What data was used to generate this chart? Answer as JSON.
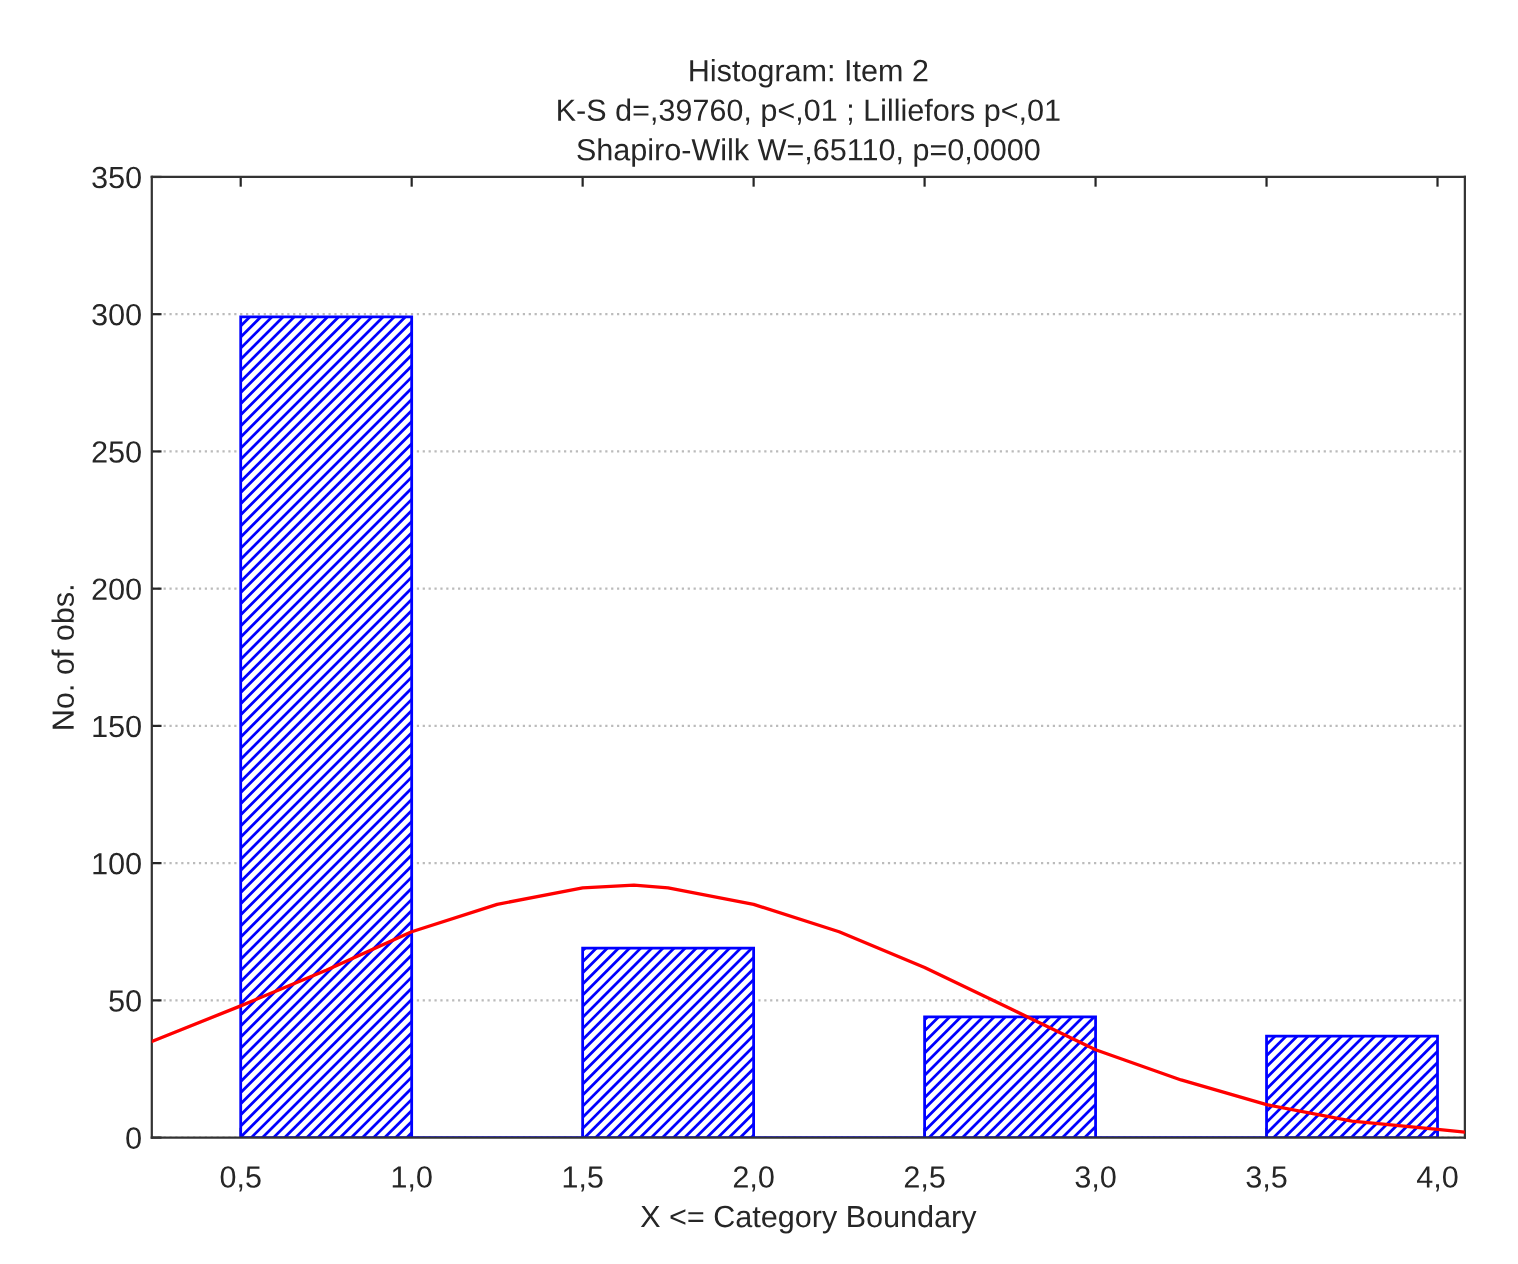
{
  "chart_data": {
    "type": "histogram",
    "title": "Histogram: Item 2\nK-S d=,39760, p<,01 ; Lilliefors p<,01\nShapiro-Wilk W=,65110, p=0,0000",
    "xlabel": "X <= Category Boundary",
    "ylabel": "No. of obs.",
    "bins": [
      0.5,
      1.0,
      1.5,
      2.0,
      2.5,
      3.0,
      3.5,
      4.0
    ],
    "values": [
      299,
      0,
      69,
      0,
      44,
      0,
      37
    ],
    "color": "#0000ff",
    "series": [
      {
        "type": "line",
        "color": "#ff0000",
        "x": [
          0.24,
          0.5,
          0.75,
          1.0,
          1.25,
          1.5,
          1.65,
          1.75,
          2.0,
          2.25,
          2.5,
          2.75,
          3.0,
          3.25,
          3.5,
          3.75,
          4.0,
          4.08
        ],
        "values": [
          35,
          48,
          61,
          75,
          85,
          91,
          92,
          91,
          85,
          75,
          62,
          47,
          32,
          21,
          12,
          6,
          3,
          2
        ]
      }
    ],
    "xlim": [
      0.24,
      4.08
    ],
    "ylim": [
      0,
      350
    ],
    "xticks": [
      {
        "value": 0.5,
        "label": "0,5"
      },
      {
        "value": 1.0,
        "label": "1,0"
      },
      {
        "value": 1.5,
        "label": "1,5"
      },
      {
        "value": 2.0,
        "label": "2,0"
      },
      {
        "value": 2.5,
        "label": "2,5"
      },
      {
        "value": 3.0,
        "label": "3,0"
      },
      {
        "value": 3.5,
        "label": "3,5"
      },
      {
        "value": 4.0,
        "label": "4,0"
      }
    ],
    "yticks": [
      0,
      50,
      100,
      150,
      200,
      250,
      300,
      350
    ],
    "grid": "y"
  }
}
